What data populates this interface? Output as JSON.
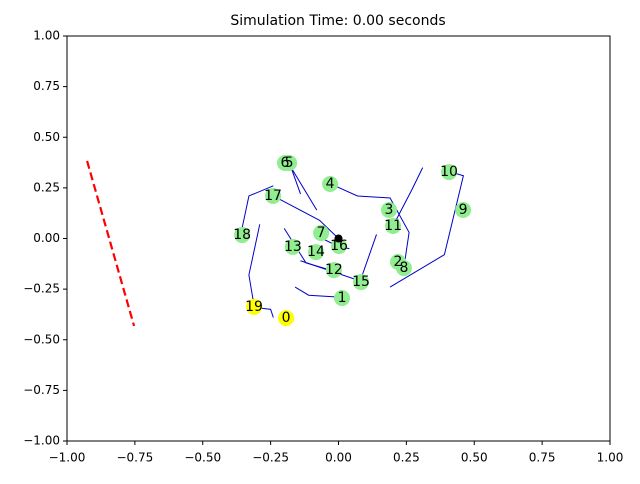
{
  "chart_data": {
    "type": "scatter",
    "title": "Simulation Time: 0.00 seconds",
    "xlim": [
      -1,
      1
    ],
    "ylim": [
      -1,
      1
    ],
    "xticks": [
      {
        "value": -1,
        "label": "−1.00"
      },
      {
        "value": -0.75,
        "label": "−0.75"
      },
      {
        "value": -0.5,
        "label": "−0.50"
      },
      {
        "value": -0.25,
        "label": "−0.25"
      },
      {
        "value": 0,
        "label": "0.00"
      },
      {
        "value": 0.25,
        "label": "0.25"
      },
      {
        "value": 0.5,
        "label": "0.50"
      },
      {
        "value": 0.75,
        "label": "0.75"
      },
      {
        "value": 1,
        "label": "1.00"
      }
    ],
    "yticks": [
      {
        "value": -1,
        "label": "−1.00"
      },
      {
        "value": -0.75,
        "label": "−0.75"
      },
      {
        "value": -0.5,
        "label": "−0.50"
      },
      {
        "value": -0.25,
        "label": "−0.25"
      },
      {
        "value": 0,
        "label": "0.00"
      },
      {
        "value": 0.25,
        "label": "0.25"
      },
      {
        "value": 0.5,
        "label": "0.50"
      },
      {
        "value": 0.75,
        "label": "0.75"
      },
      {
        "value": 1,
        "label": "1.00"
      }
    ],
    "trajectory_color": "#0000cc",
    "trajectories": [
      {
        "x": [
          0.19,
          0.39,
          0.46,
          0.41
        ],
        "y": [
          -0.24,
          -0.08,
          0.31,
          0.33
        ]
      },
      {
        "x": [
          0.31,
          0.27,
          0.2
        ],
        "y": [
          0.35,
          0.24,
          0.06
        ]
      },
      {
        "x": [
          -0.03,
          0.07,
          0.19,
          0.26,
          0.24
        ],
        "y": [
          0.27,
          0.21,
          0.2,
          0.03,
          -0.15
        ]
      },
      {
        "x": [
          -0.24,
          -0.33,
          -0.36
        ],
        "y": [
          0.26,
          0.21,
          0.02
        ]
      },
      {
        "x": [
          -0.29,
          -0.33,
          -0.31,
          -0.25,
          -0.24
        ],
        "y": [
          0.07,
          -0.18,
          -0.34,
          -0.35,
          -0.39
        ]
      },
      {
        "x": [
          -0.16,
          -0.11,
          0.01
        ],
        "y": [
          -0.24,
          -0.28,
          -0.29
        ]
      },
      {
        "x": [
          -0.08,
          -0.17,
          -0.2
        ],
        "y": [
          0.14,
          0.34,
          0.37
        ]
      },
      {
        "x": [
          -0.14,
          -0.18
        ],
        "y": [
          0.22,
          0.37
        ]
      },
      {
        "x": [
          0,
          -0.07,
          -0.24
        ],
        "y": [
          0,
          0.09,
          0.21
        ]
      },
      {
        "x": [
          -0.2,
          -0.12,
          -0.02
        ],
        "y": [
          0.05,
          -0.12,
          -0.16
        ]
      },
      {
        "x": [
          0.14,
          0.08,
          -0.14
        ],
        "y": [
          0.02,
          -0.21,
          -0.11
        ]
      },
      {
        "x": [
          0.04,
          0,
          -0.09
        ],
        "y": [
          -0.05,
          -0.04,
          0.02
        ]
      }
    ],
    "boundary": {
      "x": [
        -0.926,
        -0.753
      ],
      "y": [
        0.383,
        -0.432
      ],
      "color": "#ff0000"
    },
    "origin": {
      "x": 0,
      "y": 0,
      "color": "#000000"
    },
    "labels": [
      "0",
      "1",
      "2",
      "3",
      "4",
      "5",
      "6",
      "7",
      "8",
      "9",
      "10",
      "11",
      "12",
      "13",
      "14",
      "15",
      "16",
      "17",
      "18",
      "19"
    ],
    "x": [
      -0.193,
      0.013,
      0.219,
      0.186,
      -0.031,
      -0.182,
      -0.197,
      -0.064,
      0.241,
      0.459,
      0.407,
      0.201,
      -0.017,
      -0.168,
      -0.083,
      0.083,
      0.002,
      -0.241,
      -0.355,
      -0.311
    ],
    "y": [
      -0.393,
      -0.294,
      -0.116,
      0.141,
      0.269,
      0.373,
      0.373,
      0.027,
      -0.146,
      0.141,
      0.328,
      0.062,
      -0.156,
      -0.042,
      -0.067,
      -0.215,
      -0.037,
      0.21,
      0.017,
      -0.338
    ],
    "point_colors": [
      "#ffff00",
      "#90ee90",
      "#90ee90",
      "#90ee90",
      "#90ee90",
      "#90ee90",
      "#90ee90",
      "#90ee90",
      "#90ee90",
      "#90ee90",
      "#90ee90",
      "#90ee90",
      "#90ee90",
      "#90ee90",
      "#90ee90",
      "#90ee90",
      "#90ee90",
      "#90ee90",
      "#90ee90",
      "#ffff00"
    ]
  }
}
